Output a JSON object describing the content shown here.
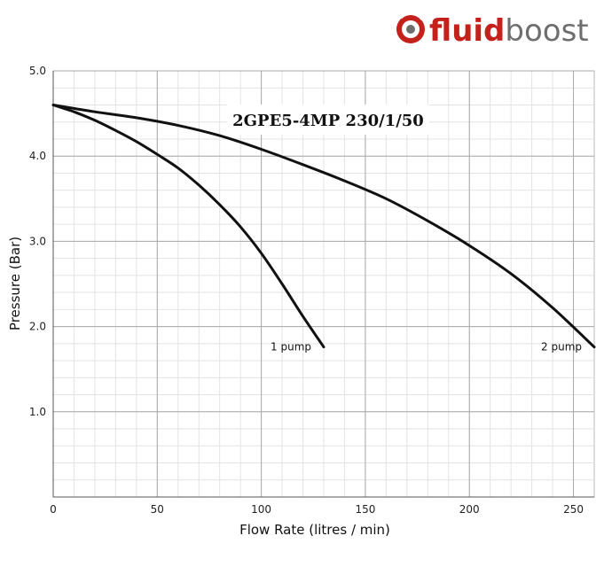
{
  "logo": {
    "part1": "fluid",
    "part2": "boost",
    "accent": "#c4211d",
    "secondary": "#6e6e6e"
  },
  "chart_data": {
    "type": "line",
    "title": "2GPE5-4MP 230/1/50",
    "xlabel": "Flow Rate (litres / min)",
    "ylabel": "Pressure (Bar)",
    "xlim": [
      0,
      260
    ],
    "ylim": [
      0,
      5
    ],
    "xticks": [
      0,
      50,
      100,
      150,
      200,
      250
    ],
    "yticks": [
      "1.0",
      "2.0",
      "3.0",
      "4.0",
      "5.0"
    ],
    "grid": true,
    "series": [
      {
        "name": "1 pump",
        "x": [
          0,
          10,
          20,
          30,
          40,
          50,
          60,
          70,
          80,
          90,
          100,
          110,
          120,
          130
        ],
        "y": [
          4.6,
          4.52,
          4.42,
          4.3,
          4.17,
          4.02,
          3.86,
          3.66,
          3.43,
          3.17,
          2.86,
          2.5,
          2.12,
          1.76
        ]
      },
      {
        "name": "2 pump",
        "x": [
          0,
          20,
          40,
          60,
          80,
          100,
          120,
          140,
          160,
          180,
          200,
          220,
          240,
          260
        ],
        "y": [
          4.6,
          4.52,
          4.45,
          4.36,
          4.24,
          4.08,
          3.9,
          3.71,
          3.5,
          3.24,
          2.95,
          2.62,
          2.22,
          1.76
        ]
      }
    ]
  }
}
